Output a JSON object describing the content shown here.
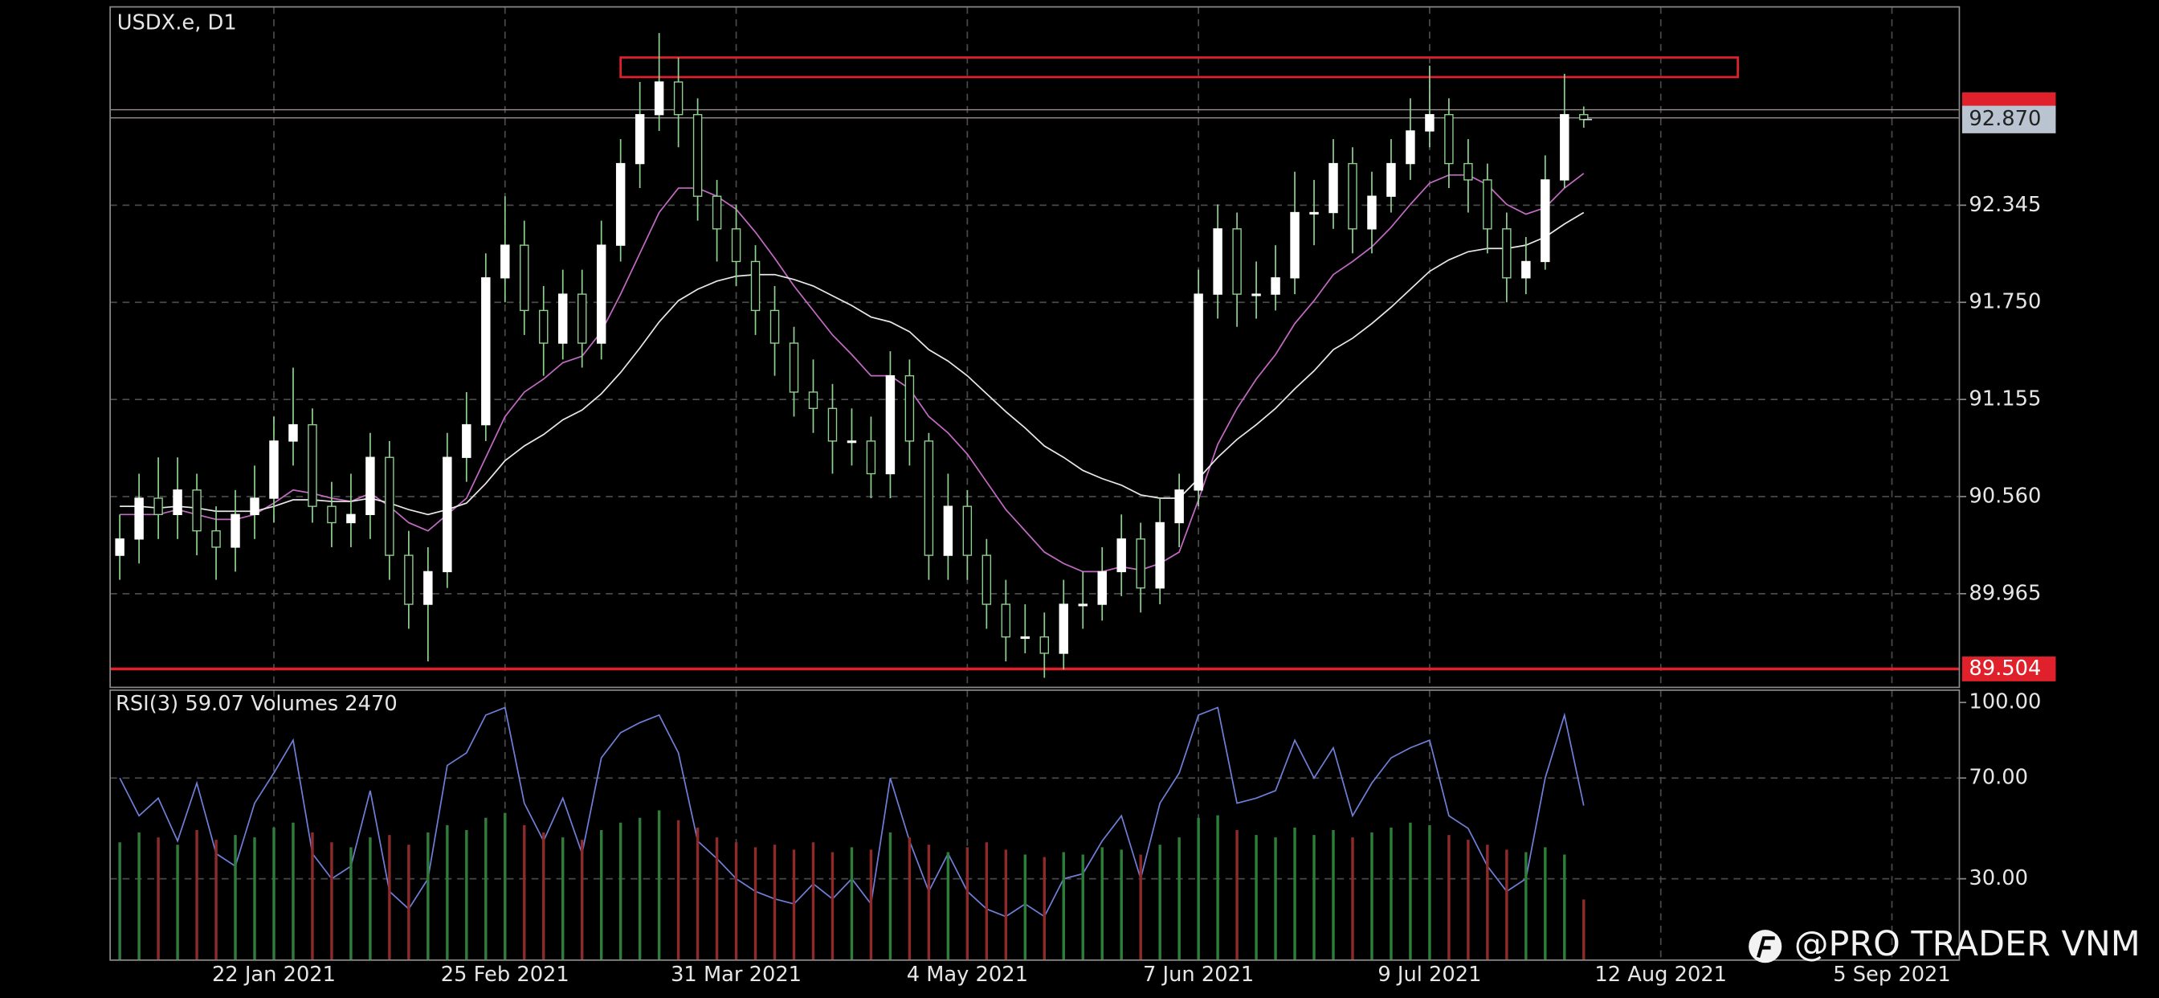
{
  "chart_data": [
    {
      "type": "candlestick",
      "title": "USDX.e, D1",
      "xlim": [
        -0.5,
        95.5
      ],
      "xticks": [
        {
          "value": 8,
          "label": "22 Jan 2021"
        },
        {
          "value": 20,
          "label": "25 Feb 2021"
        },
        {
          "value": 32,
          "label": "31 Mar 2021"
        },
        {
          "value": 44,
          "label": "4 May 2021"
        },
        {
          "value": 56,
          "label": "7 Jun 2021"
        },
        {
          "value": 68,
          "label": "9 Jul 2021"
        },
        {
          "value": 80,
          "label": "12 Aug 2021"
        },
        {
          "value": 92,
          "label": "5 Sep 2021"
        }
      ],
      "ylim": [
        89.391,
        93.56
      ],
      "yticks": [
        92.345,
        {
          "value": 91.75,
          "label": "91.750"
        },
        91.155,
        {
          "value": 90.56,
          "label": "90.560"
        },
        89.965
      ],
      "grid": true,
      "up_color": "#ffffff",
      "down_color": "#000000",
      "wick_color": "#8fd08f",
      "open": [
        90.2,
        90.3,
        90.55,
        90.45,
        90.6,
        90.35,
        90.25,
        90.45,
        90.55,
        90.9,
        91.0,
        90.5,
        90.4,
        90.45,
        90.8,
        90.2,
        89.9,
        90.1,
        90.8,
        91.0,
        91.9,
        92.1,
        91.7,
        91.5,
        91.8,
        91.5,
        92.1,
        92.6,
        92.9,
        93.1,
        92.9,
        92.4,
        92.2,
        92.0,
        91.7,
        91.5,
        91.2,
        91.1,
        90.9,
        90.9,
        90.7,
        91.3,
        90.9,
        90.2,
        90.5,
        90.2,
        89.9,
        89.7,
        89.7,
        89.6,
        89.9,
        89.9,
        90.1,
        90.3,
        90.0,
        90.4,
        90.6,
        91.8,
        92.2,
        91.8,
        91.8,
        91.9,
        92.3,
        92.3,
        92.6,
        92.2,
        92.4,
        92.6,
        92.8,
        92.9,
        92.6,
        92.5,
        92.2,
        91.9,
        92.0,
        92.5,
        92.9
      ],
      "high": [
        90.45,
        90.7,
        90.8,
        90.8,
        90.7,
        90.5,
        90.6,
        90.75,
        91.05,
        91.35,
        91.1,
        90.65,
        90.7,
        90.95,
        90.9,
        90.35,
        90.25,
        90.95,
        91.2,
        92.05,
        92.4,
        92.25,
        91.85,
        91.95,
        91.95,
        92.25,
        92.75,
        93.1,
        93.4,
        93.25,
        93.0,
        92.5,
        92.35,
        92.1,
        91.85,
        91.6,
        91.4,
        91.25,
        91.1,
        91.05,
        91.45,
        91.4,
        90.95,
        90.7,
        90.6,
        90.3,
        90.05,
        89.9,
        89.85,
        90.05,
        90.1,
        90.25,
        90.45,
        90.4,
        90.55,
        90.7,
        91.95,
        92.35,
        92.3,
        92.0,
        92.1,
        92.55,
        92.5,
        92.75,
        92.7,
        92.55,
        92.75,
        93.0,
        93.2,
        93.0,
        92.75,
        92.6,
        92.3,
        92.15,
        92.65,
        93.15,
        92.95
      ],
      "low": [
        90.05,
        90.15,
        90.3,
        90.3,
        90.2,
        90.05,
        90.1,
        90.3,
        90.4,
        90.75,
        90.4,
        90.25,
        90.25,
        90.3,
        90.05,
        89.75,
        89.55,
        90.0,
        90.65,
        90.9,
        91.75,
        91.55,
        91.3,
        91.4,
        91.35,
        91.4,
        92.0,
        92.45,
        92.8,
        92.7,
        92.25,
        92.0,
        91.85,
        91.55,
        91.3,
        91.05,
        90.95,
        90.7,
        90.75,
        90.55,
        90.55,
        90.75,
        90.05,
        90.05,
        90.05,
        89.75,
        89.55,
        89.6,
        89.45,
        89.5,
        89.75,
        89.8,
        89.95,
        89.85,
        89.9,
        90.25,
        90.5,
        91.65,
        91.6,
        91.65,
        91.7,
        91.8,
        92.1,
        92.2,
        92.05,
        92.05,
        92.3,
        92.5,
        92.7,
        92.45,
        92.3,
        92.05,
        91.75,
        91.8,
        91.95,
        92.45,
        92.82
      ],
      "close": [
        90.3,
        90.55,
        90.45,
        90.6,
        90.35,
        90.25,
        90.45,
        90.55,
        90.9,
        91.0,
        90.5,
        90.4,
        90.45,
        90.8,
        90.2,
        89.9,
        90.1,
        90.8,
        91.0,
        91.9,
        92.1,
        91.7,
        91.5,
        91.8,
        91.5,
        92.1,
        92.6,
        92.9,
        93.1,
        92.9,
        92.4,
        92.2,
        92.0,
        91.7,
        91.5,
        91.2,
        91.1,
        90.9,
        90.9,
        90.7,
        91.3,
        90.9,
        90.2,
        90.5,
        90.2,
        89.9,
        89.7,
        89.7,
        89.6,
        89.9,
        89.9,
        90.1,
        90.3,
        90.0,
        90.4,
        90.6,
        91.8,
        92.2,
        91.8,
        91.8,
        91.9,
        92.3,
        92.3,
        92.6,
        92.2,
        92.4,
        92.6,
        92.8,
        92.9,
        92.6,
        92.5,
        92.2,
        91.9,
        92.0,
        92.5,
        92.9,
        92.87
      ],
      "lines": [
        {
          "color": "#c46ac4",
          "values": [
            90.45,
            90.45,
            90.45,
            90.48,
            90.45,
            90.42,
            90.42,
            90.45,
            90.52,
            90.6,
            90.58,
            90.55,
            90.53,
            90.58,
            90.5,
            90.4,
            90.35,
            90.45,
            90.55,
            90.8,
            91.05,
            91.2,
            91.28,
            91.38,
            91.42,
            91.57,
            91.8,
            92.05,
            92.3,
            92.45,
            92.45,
            92.4,
            92.32,
            92.18,
            92.02,
            91.85,
            91.7,
            91.55,
            91.43,
            91.3,
            91.3,
            91.22,
            91.05,
            90.95,
            90.82,
            90.65,
            90.48,
            90.35,
            90.22,
            90.15,
            90.1,
            90.1,
            90.13,
            90.11,
            90.15,
            90.22,
            90.54,
            90.88,
            91.1,
            91.28,
            91.43,
            91.62,
            91.76,
            91.92,
            92.0,
            92.09,
            92.21,
            92.35,
            92.48,
            92.53,
            92.53,
            92.47,
            92.35,
            92.29,
            92.33,
            92.45,
            92.54
          ]
        },
        {
          "color": "#e8e8e8",
          "values": [
            90.5,
            90.5,
            90.49,
            90.5,
            90.49,
            90.47,
            90.47,
            90.47,
            90.5,
            90.54,
            90.54,
            90.53,
            90.53,
            90.55,
            90.52,
            90.48,
            90.45,
            90.48,
            90.52,
            90.64,
            90.78,
            90.87,
            90.94,
            91.03,
            91.09,
            91.19,
            91.32,
            91.47,
            91.63,
            91.76,
            91.83,
            91.88,
            91.91,
            91.92,
            91.92,
            91.89,
            91.85,
            91.79,
            91.73,
            91.66,
            91.63,
            91.57,
            91.46,
            91.39,
            91.3,
            91.19,
            91.08,
            90.98,
            90.87,
            90.8,
            90.72,
            90.67,
            90.63,
            90.57,
            90.55,
            90.55,
            90.67,
            90.8,
            90.91,
            91.0,
            91.1,
            91.22,
            91.33,
            91.46,
            91.53,
            91.62,
            91.72,
            91.83,
            91.94,
            92.01,
            92.06,
            92.08,
            92.08,
            92.1,
            92.15,
            92.23,
            92.3
          ]
        }
      ],
      "h_lines": [
        92.93,
        92.88
      ],
      "zone": {
        "x_from": 26,
        "x_to": 84,
        "from": 93.13,
        "to": 93.25,
        "color": "#e0202a"
      },
      "ask_price": 92.96,
      "current_price": {
        "value": 92.87,
        "label": "92.870"
      },
      "support": {
        "value": 89.504,
        "color": "#e0202a"
      }
    },
    {
      "type": "line",
      "ylim": [
        -2.3,
        104.9
      ],
      "y2lim": [
        0,
        11000
      ],
      "yticks": [
        {
          "value": 100,
          "label": "100.00"
        },
        {
          "value": 70,
          "label": "70.00"
        },
        {
          "value": 30,
          "label": "30.00"
        }
      ],
      "grid": true,
      "series": [
        {
          "name": "RSI(3)",
          "color": "#6f7fd8",
          "values": [
            70,
            55,
            62,
            45,
            68,
            40,
            35,
            60,
            72,
            85,
            40,
            30,
            35,
            65,
            25,
            18,
            30,
            75,
            80,
            95,
            98,
            60,
            45,
            62,
            40,
            78,
            88,
            92,
            95,
            80,
            45,
            38,
            30,
            25,
            22,
            20,
            28,
            22,
            30,
            20,
            70,
            45,
            25,
            40,
            25,
            18,
            15,
            20,
            15,
            30,
            32,
            45,
            55,
            30,
            60,
            72,
            95,
            98,
            60,
            62,
            65,
            85,
            70,
            82,
            55,
            68,
            78,
            82,
            85,
            55,
            50,
            35,
            25,
            30,
            70,
            95,
            59.07
          ]
        },
        {
          "name": "Volumes",
          "axis": "y2",
          "up_color": "#2e7d3a",
          "down_color": "#8e2a2a",
          "values": [
            4800,
            5200,
            5000,
            4700,
            5300,
            4900,
            5100,
            5000,
            5400,
            5600,
            5200,
            4800,
            4600,
            5000,
            5100,
            4700,
            5200,
            5500,
            5300,
            5800,
            6000,
            5500,
            5200,
            5000,
            4900,
            5300,
            5600,
            5800,
            6100,
            5700,
            5400,
            5000,
            4800,
            4600,
            4700,
            4500,
            4800,
            4400,
            4600,
            4500,
            5200,
            5000,
            4700,
            4400,
            4600,
            4800,
            4500,
            4300,
            4200,
            4400,
            4300,
            4600,
            4500,
            4300,
            4700,
            5000,
            5800,
            5900,
            5300,
            5100,
            5000,
            5400,
            5100,
            5300,
            5000,
            5200,
            5400,
            5600,
            5500,
            5100,
            4900,
            4700,
            4500,
            4400,
            4600,
            4300,
            2470
          ]
        }
      ]
    }
  ],
  "watermark": "@PRO TRADER VNM"
}
